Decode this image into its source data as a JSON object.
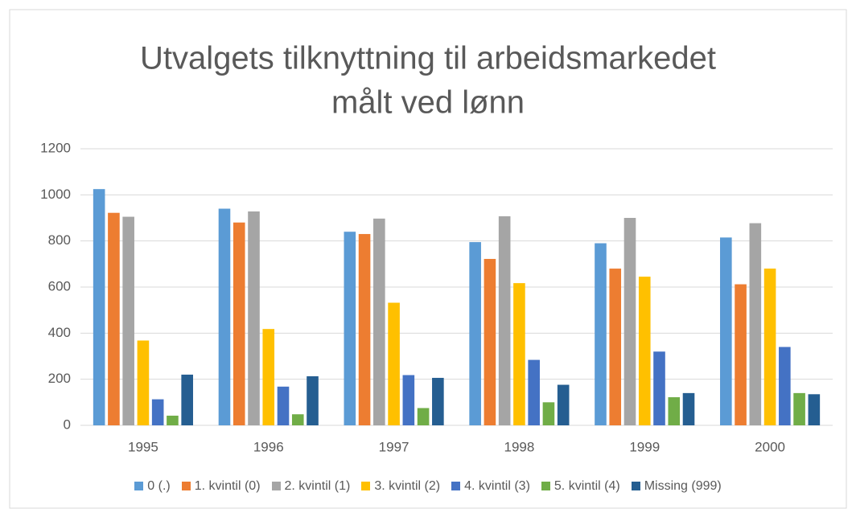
{
  "chart_data": {
    "type": "bar",
    "title": [
      "Utvalgets tilknyttning til arbeidsmarkedet",
      "målt ved lønn"
    ],
    "categories": [
      "1995",
      "1996",
      "1997",
      "1998",
      "1999",
      "2000"
    ],
    "series": [
      {
        "name": "0 (.)",
        "color": "#5b9bd5",
        "values": [
          1025,
          940,
          840,
          795,
          790,
          815
        ]
      },
      {
        "name": "1. kvintil (0)",
        "color": "#ed7d31",
        "values": [
          922,
          880,
          830,
          722,
          680,
          612
        ]
      },
      {
        "name": "2. kvintil (1)",
        "color": "#a5a5a5",
        "values": [
          905,
          928,
          897,
          907,
          900,
          877
        ]
      },
      {
        "name": "3. kvintil (2)",
        "color": "#ffc000",
        "values": [
          368,
          418,
          532,
          617,
          645,
          680
        ]
      },
      {
        "name": "4. kvintil (3)",
        "color": "#4472c4",
        "values": [
          113,
          168,
          218,
          284,
          320,
          340
        ]
      },
      {
        "name": "5. kvintil (4)",
        "color": "#70ad47",
        "values": [
          42,
          48,
          75,
          100,
          122,
          140
        ]
      },
      {
        "name": "Missing (999)",
        "color": "#255e91",
        "values": [
          220,
          213,
          206,
          176,
          140,
          135
        ]
      }
    ],
    "ylim": [
      0,
      1200
    ],
    "yticks": [
      0,
      200,
      400,
      600,
      800,
      1000,
      1200
    ],
    "grid": true,
    "legend": "bottom"
  }
}
